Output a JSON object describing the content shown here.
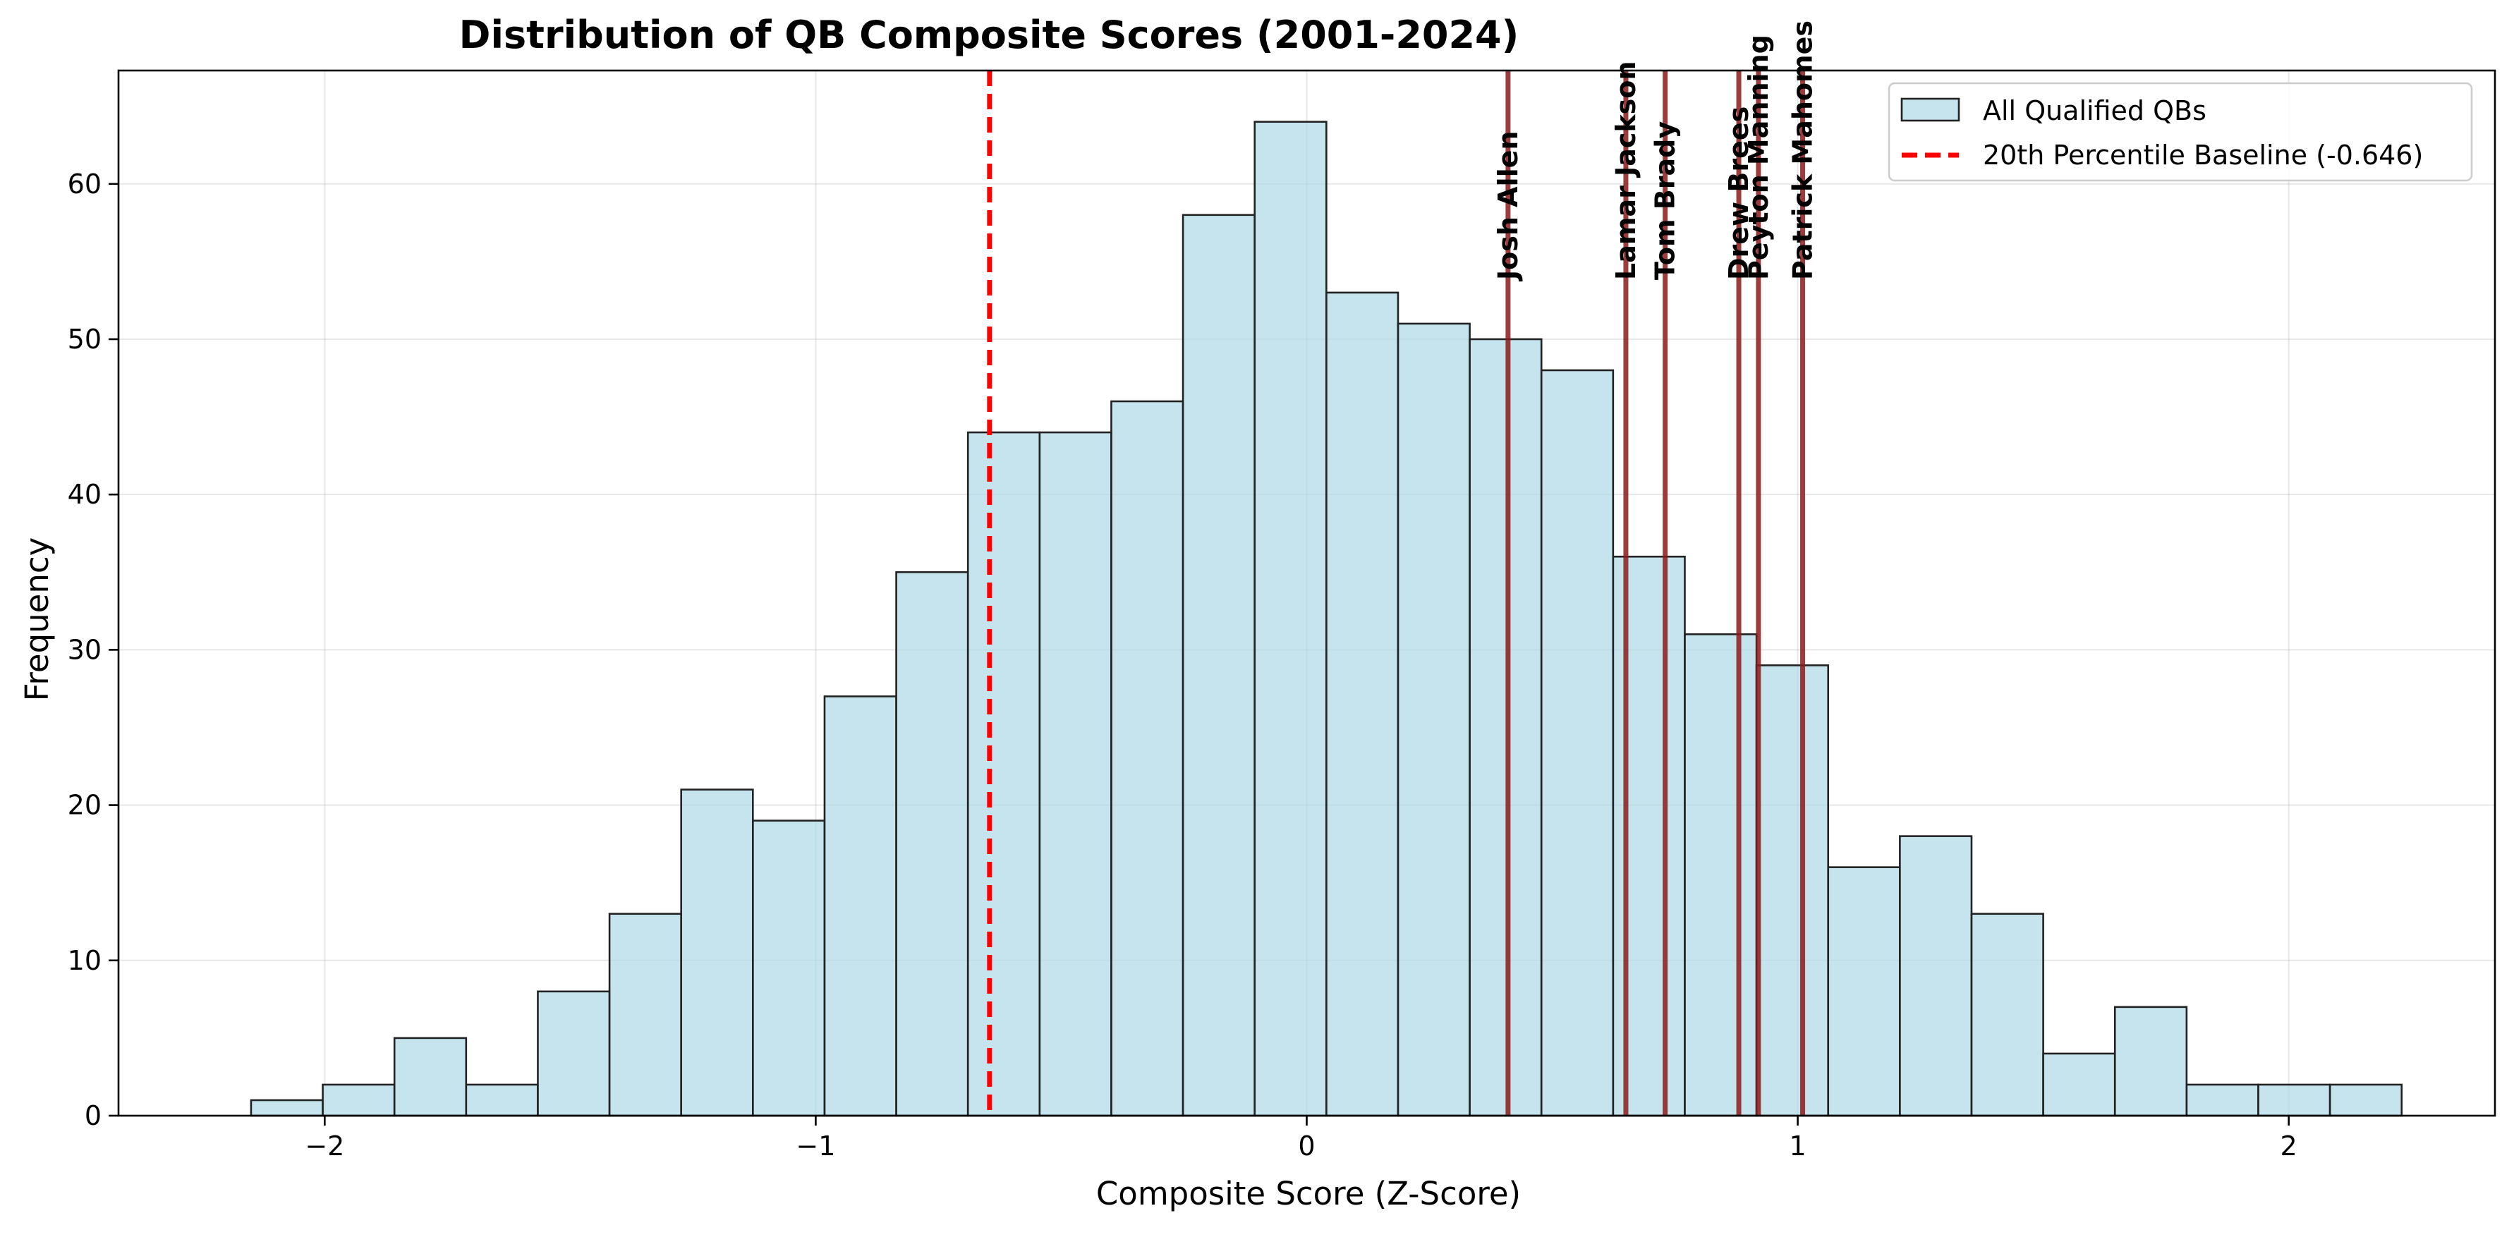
{
  "chart_data": {
    "type": "bar",
    "title": "Distribution of QB Composite Scores (2001-2024)",
    "xlabel": "Composite Score (Z-Score)",
    "ylabel": "Frequency",
    "xlim": [
      -2.42,
      2.42
    ],
    "ylim": [
      0,
      67.3
    ],
    "grid": true,
    "legend_position": "top-right",
    "x_ticks": [
      -2,
      -1,
      0,
      1,
      2
    ],
    "x_tick_labels": [
      "−2",
      "−1",
      "0",
      "1",
      "2"
    ],
    "y_ticks": [
      0,
      10,
      20,
      30,
      40,
      50,
      60
    ],
    "y_tick_labels": [
      "0",
      "10",
      "20",
      "30",
      "40",
      "50",
      "60"
    ],
    "bin_edges": [
      -2.15,
      -2.004,
      -1.858,
      -1.712,
      -1.566,
      -1.42,
      -1.274,
      -1.128,
      -0.982,
      -0.836,
      -0.69,
      -0.544,
      -0.398,
      -0.252,
      -0.106,
      0.04,
      0.186,
      0.332,
      0.478,
      0.624,
      0.77,
      0.916,
      1.062,
      1.208,
      1.354,
      1.5,
      1.646,
      1.792,
      1.938,
      2.084,
      2.23
    ],
    "values": [
      1,
      2,
      5,
      2,
      8,
      13,
      21,
      19,
      27,
      35,
      44,
      44,
      46,
      58,
      64,
      53,
      51,
      50,
      48,
      36,
      31,
      29,
      16,
      18,
      13,
      4,
      7,
      2,
      2,
      2
    ],
    "series": [
      {
        "name": "All Qualified QBs",
        "color": "#add8e6",
        "edge_color": "#222222"
      }
    ],
    "baseline": {
      "label": "20th Percentile Baseline (-0.646)",
      "value": -0.646,
      "color": "#ff0000"
    },
    "qb_lines": [
      {
        "name": "Josh Allen",
        "value": 0.41
      },
      {
        "name": "Lamar Jackson",
        "value": 0.65
      },
      {
        "name": "Tom Brady",
        "value": 0.73
      },
      {
        "name": "Drew Brees",
        "value": 0.88
      },
      {
        "name": "Peyton Manning",
        "value": 0.92
      },
      {
        "name": "Patrick Mahomes",
        "value": 1.01
      }
    ],
    "qb_line_color": "#8b1a1a"
  }
}
